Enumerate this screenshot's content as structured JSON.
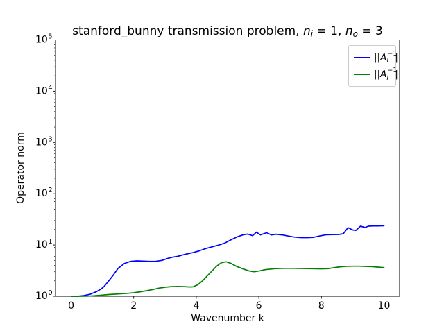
{
  "figure": {
    "bg_color": "#ffffff",
    "title_parts": [
      {
        "t": "stanford_bunny transmission problem, "
      },
      {
        "t": "n",
        "style": "i"
      },
      {
        "t": "i",
        "style": "sub"
      },
      {
        "t": " = 1, "
      },
      {
        "t": "n",
        "style": "i"
      },
      {
        "t": "o",
        "style": "sub"
      },
      {
        "t": " = 3"
      }
    ],
    "xlabel": "Wavenumber k",
    "ylabel": "Operator norm"
  },
  "legend": {
    "position": "upper right",
    "items": [
      {
        "name": "A-l-inverse-norm",
        "color": "#0000ff",
        "parts": [
          {
            "t": "||"
          },
          {
            "t": "A",
            "style": "i"
          },
          {
            "sup": "−1",
            "sub": "l"
          },
          {
            "t": "||"
          }
        ]
      },
      {
        "name": "A-tilde-l-inverse-norm",
        "color": "#008000",
        "parts": [
          {
            "t": "||"
          },
          {
            "t": "Ã",
            "style": "i"
          },
          {
            "sup": "−1",
            "sub": "l"
          },
          {
            "t": "||"
          }
        ]
      }
    ]
  },
  "chart_data": {
    "type": "line",
    "title": "stanford_bunny transmission problem, n_i = 1, n_o = 3",
    "xlabel": "Wavenumber k",
    "ylabel": "Operator norm",
    "grid": false,
    "legend_position": "upper right",
    "x_axis": {
      "min": -0.5,
      "max": 10.5,
      "ticks": [
        0,
        2,
        4,
        6,
        8,
        10
      ]
    },
    "y_axis": {
      "scale": "log",
      "min": 1,
      "max": 100000,
      "tick_exponents": [
        0,
        1,
        2,
        3,
        4,
        5
      ],
      "tick_base": "10"
    },
    "series": [
      {
        "name": "||A_l^-1||",
        "color": "#0000ff",
        "points": [
          [
            0.0,
            1.0
          ],
          [
            0.2,
            1.0
          ],
          [
            0.4,
            1.03
          ],
          [
            0.6,
            1.09
          ],
          [
            0.8,
            1.22
          ],
          [
            0.95,
            1.38
          ],
          [
            1.05,
            1.54
          ],
          [
            1.2,
            2.0
          ],
          [
            1.35,
            2.6
          ],
          [
            1.5,
            3.5
          ],
          [
            1.7,
            4.35
          ],
          [
            1.9,
            4.8
          ],
          [
            2.1,
            4.9
          ],
          [
            2.3,
            4.85
          ],
          [
            2.5,
            4.8
          ],
          [
            2.7,
            4.8
          ],
          [
            2.9,
            5.0
          ],
          [
            3.1,
            5.5
          ],
          [
            3.25,
            5.8
          ],
          [
            3.4,
            6.0
          ],
          [
            3.55,
            6.35
          ],
          [
            3.7,
            6.7
          ],
          [
            3.9,
            7.1
          ],
          [
            4.1,
            7.7
          ],
          [
            4.3,
            8.5
          ],
          [
            4.5,
            9.2
          ],
          [
            4.7,
            9.9
          ],
          [
            4.9,
            10.8
          ],
          [
            5.1,
            12.5
          ],
          [
            5.3,
            14.3
          ],
          [
            5.5,
            15.8
          ],
          [
            5.65,
            16.3
          ],
          [
            5.8,
            15.2
          ],
          [
            5.92,
            17.8
          ],
          [
            6.05,
            15.7
          ],
          [
            6.25,
            17.3
          ],
          [
            6.4,
            15.7
          ],
          [
            6.55,
            16.2
          ],
          [
            6.75,
            15.7
          ],
          [
            6.95,
            14.9
          ],
          [
            7.15,
            14.2
          ],
          [
            7.35,
            13.9
          ],
          [
            7.55,
            13.9
          ],
          [
            7.75,
            14.1
          ],
          [
            7.95,
            15.0
          ],
          [
            8.15,
            15.8
          ],
          [
            8.35,
            15.9
          ],
          [
            8.55,
            16.0
          ],
          [
            8.7,
            16.5
          ],
          [
            8.85,
            21.8
          ],
          [
            9.0,
            19.6
          ],
          [
            9.1,
            19.2
          ],
          [
            9.25,
            23.3
          ],
          [
            9.4,
            21.9
          ],
          [
            9.5,
            23.3
          ],
          [
            9.65,
            23.5
          ],
          [
            9.8,
            23.5
          ],
          [
            10.0,
            23.7
          ]
        ]
      },
      {
        "name": "||Ã_l^-1||",
        "color": "#008000",
        "points": [
          [
            0.0,
            1.0
          ],
          [
            0.3,
            1.0
          ],
          [
            0.6,
            1.01
          ],
          [
            0.9,
            1.04
          ],
          [
            1.2,
            1.08
          ],
          [
            1.5,
            1.11
          ],
          [
            1.8,
            1.14
          ],
          [
            2.0,
            1.17
          ],
          [
            2.2,
            1.22
          ],
          [
            2.4,
            1.28
          ],
          [
            2.6,
            1.35
          ],
          [
            2.8,
            1.44
          ],
          [
            3.0,
            1.5
          ],
          [
            3.2,
            1.54
          ],
          [
            3.4,
            1.55
          ],
          [
            3.6,
            1.54
          ],
          [
            3.8,
            1.52
          ],
          [
            3.9,
            1.53
          ],
          [
            4.05,
            1.68
          ],
          [
            4.2,
            2.0
          ],
          [
            4.35,
            2.5
          ],
          [
            4.5,
            3.1
          ],
          [
            4.65,
            3.85
          ],
          [
            4.8,
            4.5
          ],
          [
            4.95,
            4.7
          ],
          [
            5.1,
            4.4
          ],
          [
            5.3,
            3.8
          ],
          [
            5.5,
            3.4
          ],
          [
            5.7,
            3.1
          ],
          [
            5.85,
            3.0
          ],
          [
            6.0,
            3.1
          ],
          [
            6.2,
            3.3
          ],
          [
            6.5,
            3.45
          ],
          [
            6.8,
            3.5
          ],
          [
            7.1,
            3.5
          ],
          [
            7.4,
            3.48
          ],
          [
            7.7,
            3.45
          ],
          [
            8.0,
            3.42
          ],
          [
            8.2,
            3.45
          ],
          [
            8.4,
            3.6
          ],
          [
            8.6,
            3.75
          ],
          [
            8.8,
            3.83
          ],
          [
            9.0,
            3.85
          ],
          [
            9.2,
            3.85
          ],
          [
            9.4,
            3.82
          ],
          [
            9.6,
            3.78
          ],
          [
            9.8,
            3.7
          ],
          [
            10.0,
            3.62
          ]
        ]
      }
    ]
  }
}
